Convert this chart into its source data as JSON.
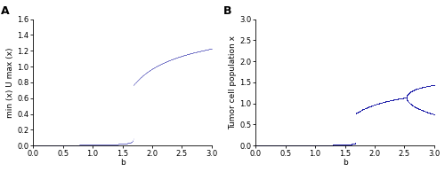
{
  "panel_A": {
    "label": "A",
    "xlabel": "b",
    "ylabel": "min (x) U max (x)",
    "xlim": [
      0,
      3
    ],
    "ylim": [
      0,
      1.6
    ],
    "yticks": [
      0,
      0.2,
      0.4,
      0.6,
      0.8,
      1.0,
      1.2,
      1.4,
      1.6
    ],
    "xticks": [
      0,
      0.5,
      1.0,
      1.5,
      2.0,
      2.5,
      3.0
    ]
  },
  "panel_B": {
    "label": "B",
    "xlabel": "b",
    "ylabel": "Tumor cell population x",
    "xlim": [
      0,
      3
    ],
    "ylim": [
      0,
      3
    ],
    "yticks": [
      0,
      0.5,
      1.0,
      1.5,
      2.0,
      2.5,
      3.0
    ],
    "xticks": [
      0,
      0.5,
      1.0,
      1.5,
      2.0,
      2.5,
      3.0
    ]
  },
  "line_color": "#2222aa",
  "background": "#ffffff",
  "label_fontsize": 6.5,
  "tick_fontsize": 6,
  "panel_label_fontsize": 9,
  "markersize_A": 0.4,
  "markersize_B": 0.4
}
